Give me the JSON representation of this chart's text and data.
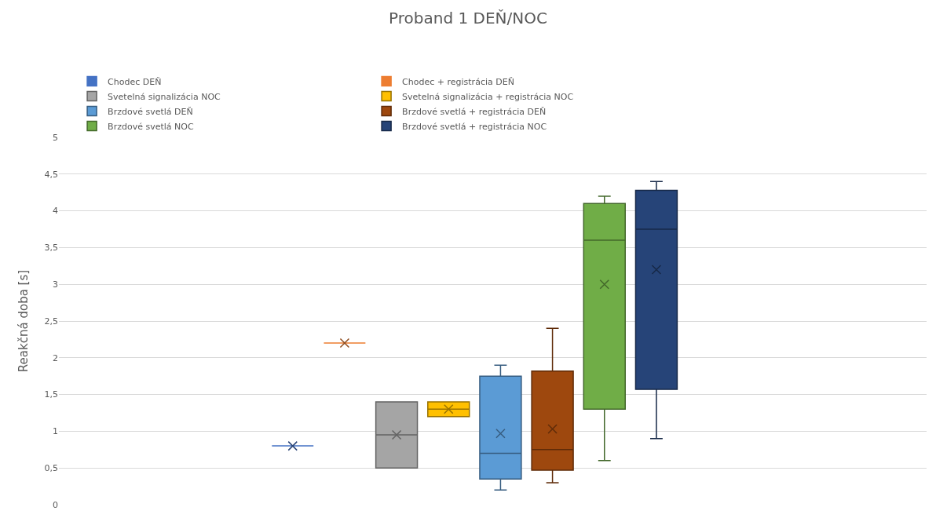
{
  "chart_data": {
    "type": "box",
    "title": "Proband 1 DEŇ/NOC",
    "ylabel": "Reakčná doba [s]",
    "categories": [
      null
    ],
    "ylim": [
      0,
      5
    ],
    "yticks": [
      0,
      {
        "value": 0.5,
        "label": "0,5"
      },
      1,
      {
        "value": 1.5,
        "label": "1,5"
      },
      2,
      {
        "value": 2.5,
        "label": "2,5"
      },
      3,
      {
        "value": 3.5,
        "label": "3,5"
      },
      4,
      {
        "value": 4.5,
        "label": "4,5"
      },
      5
    ],
    "grid": "y",
    "legend": "top",
    "tick_labels": "y",
    "series": [
      {
        "name": "Chodec DEŇ",
        "color": "#4472c4",
        "boxes": [
          {
            "low": 0.8,
            "q1": 0.8,
            "median": 0.8,
            "q3": 0.8,
            "high": 0.8,
            "mean": 0.8
          }
        ]
      },
      {
        "name": "Chodec + registrácia DEŇ",
        "color": "#ed7d31",
        "boxes": [
          {
            "low": 2.2,
            "q1": 2.2,
            "median": 2.2,
            "q3": 2.2,
            "high": 2.2,
            "mean": 2.2
          }
        ]
      },
      {
        "name": "Svetelná signalizácia NOC",
        "color": "#a5a5a5",
        "boxes": [
          {
            "low": 0.5,
            "q1": 0.5,
            "median": 0.95,
            "q3": 1.4,
            "high": 1.4,
            "mean": 0.95
          }
        ]
      },
      {
        "name": "Svetelná signalizácia + registrácia NOC",
        "color": "#ffc000",
        "boxes": [
          {
            "low": 1.2,
            "q1": 1.2,
            "median": 1.3,
            "q3": 1.4,
            "high": 1.4,
            "mean": 1.3
          }
        ]
      },
      {
        "name": "Brzdové svetlá DEŇ",
        "color": "#5b9bd5",
        "boxes": [
          {
            "low": 0.2,
            "q1": 0.35,
            "median": 0.7,
            "q3": 1.75,
            "high": 1.9,
            "mean": 0.97
          }
        ]
      },
      {
        "name": "Brzdové svetlá + registrácia DEŇ",
        "color": "#9e480e",
        "boxes": [
          {
            "low": 0.3,
            "q1": 0.47,
            "median": 0.75,
            "q3": 1.82,
            "high": 2.4,
            "mean": 1.03
          }
        ]
      },
      {
        "name": "Brzdové svetlá NOC",
        "color": "#70ad47",
        "boxes": [
          {
            "low": 0.6,
            "q1": 1.3,
            "median": 3.6,
            "q3": 4.1,
            "high": 4.2,
            "mean": 3.0
          }
        ]
      },
      {
        "name": "Brzdové svetlá + registrácia NOC",
        "color": "#264478",
        "boxes": [
          {
            "low": 0.9,
            "q1": 1.57,
            "median": 3.75,
            "q3": 4.28,
            "high": 4.4,
            "mean": 3.2
          }
        ]
      }
    ]
  }
}
